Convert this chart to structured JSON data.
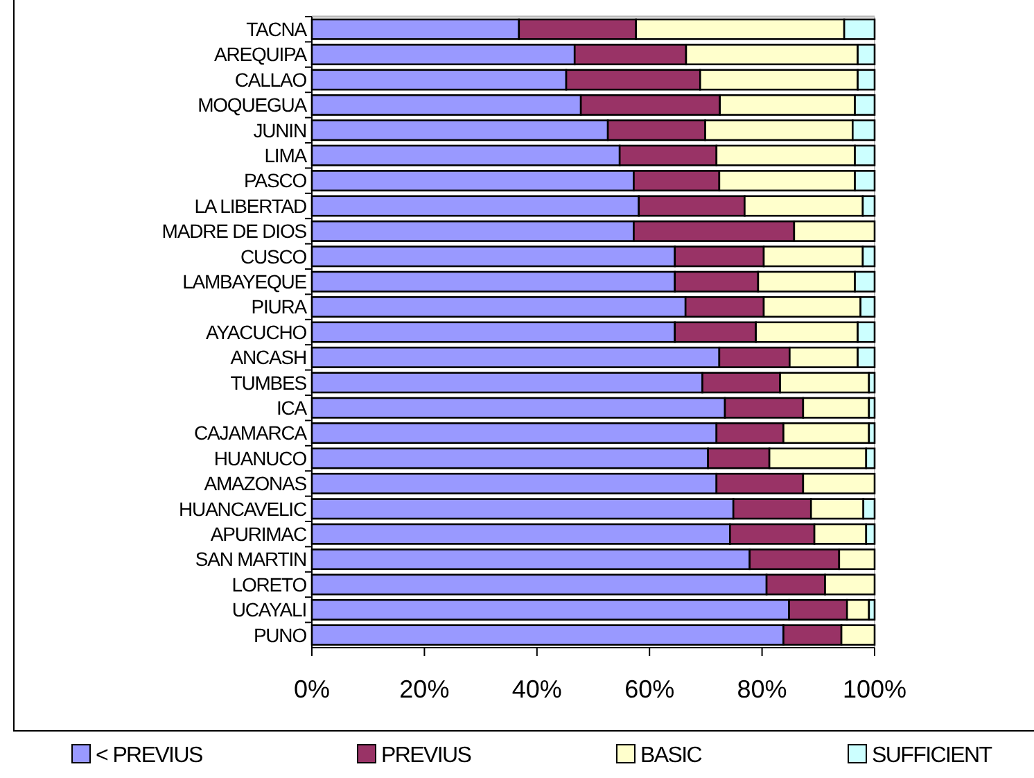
{
  "chart_data": {
    "type": "bar",
    "orientation": "horizontal",
    "stacked": true,
    "categories": [
      "TACNA",
      "AREQUIPA",
      "CALLAO",
      "MOQUEGUA",
      "JUNIN",
      "LIMA",
      "PASCO",
      "LA LIBERTAD",
      "MADRE DE DIOS",
      "CUSCO",
      "LAMBAYEQUE",
      "PIURA",
      "AYACUCHO",
      "ANCASH",
      "TUMBES",
      "ICA",
      "CAJAMARCA",
      "HUANUCO",
      "AMAZONAS",
      "HUANCAVELIC",
      "APURIMAC",
      "SAN MARTIN",
      "LORETO",
      "UCAYALI",
      "PUNO"
    ],
    "series": [
      {
        "name": "< PREVIUS",
        "color": "#9999ff",
        "values": [
          36.8,
          46.7,
          45.2,
          47.8,
          52.6,
          54.7,
          57.2,
          58.1,
          57.2,
          64.5,
          64.5,
          66.4,
          64.5,
          72.4,
          69.4,
          73.4,
          71.9,
          70.4,
          71.9,
          74.9,
          74.3,
          77.8,
          80.8,
          84.8,
          83.8
        ]
      },
      {
        "name": "PREVIUS",
        "color": "#993366",
        "values": [
          20.8,
          19.8,
          23.8,
          24.7,
          17.3,
          17.2,
          15.2,
          18.8,
          28.5,
          15.8,
          14.8,
          13.9,
          14.4,
          12.5,
          13.8,
          13.9,
          11.9,
          10.9,
          15.4,
          13.8,
          15.0,
          15.9,
          10.4,
          10.3,
          10.3
        ]
      },
      {
        "name": "BASIC",
        "color": "#ffffcc",
        "values": [
          37.0,
          30.5,
          28.0,
          24.0,
          26.2,
          24.6,
          24.1,
          21.0,
          14.3,
          17.6,
          17.2,
          17.2,
          18.1,
          12.1,
          15.8,
          11.7,
          15.2,
          17.2,
          12.7,
          9.3,
          9.2,
          6.3,
          8.8,
          3.9,
          5.9
        ]
      },
      {
        "name": "SUFFICIENT",
        "color": "#ccffff",
        "values": [
          5.4,
          3.0,
          3.0,
          3.5,
          3.9,
          3.5,
          3.5,
          2.1,
          0,
          2.1,
          3.5,
          2.5,
          3.0,
          3.0,
          1.0,
          1.0,
          1.0,
          1.5,
          0,
          2.0,
          1.5,
          0,
          0,
          1.0,
          0
        ]
      }
    ],
    "xlim": [
      0,
      100
    ],
    "xticks": [
      {
        "value": 0,
        "label": "0%"
      },
      {
        "value": 20,
        "label": "20%"
      },
      {
        "value": 40,
        "label": "40%"
      },
      {
        "value": 60,
        "label": "60%"
      },
      {
        "value": 80,
        "label": "80%"
      },
      {
        "value": 100,
        "label": "100%"
      }
    ],
    "grid": false,
    "legend": "bottom"
  }
}
